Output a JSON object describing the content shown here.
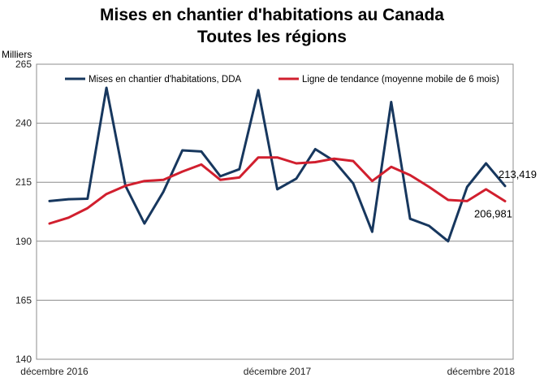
{
  "chart_data": {
    "type": "line",
    "title": "Mises en chantier d'habitations  au Canada",
    "subtitle": "Toutes les régions",
    "ylabel": "Milliers",
    "ylim": [
      140,
      265
    ],
    "yticks": [
      140,
      165,
      190,
      215,
      240,
      265
    ],
    "x_tick_labels": [
      {
        "index": 0,
        "label": "décembre 2016"
      },
      {
        "index": 12,
        "label": "décembre 2017"
      },
      {
        "index": 24,
        "label": "décembre 2018"
      }
    ],
    "grid": true,
    "legend_position": "top",
    "series": [
      {
        "name": "Mises en chantier d'habitations, DDA",
        "color": "#17375e",
        "values": [
          207.0,
          207.8,
          208.0,
          255.0,
          213.5,
          197.5,
          211.0,
          228.5,
          228.0,
          217.5,
          220.5,
          254.0,
          212.0,
          216.5,
          229.0,
          224.0,
          214.5,
          194.0,
          249.0,
          199.5,
          196.5,
          190.0,
          213.0,
          223.0,
          213.419
        ],
        "end_label": "213,419"
      },
      {
        "name": "Ligne de tendance (moyenne mobile de 6 mois)",
        "color": "#d11f2e",
        "values": [
          197.5,
          200.0,
          204.0,
          210.0,
          213.5,
          215.5,
          216.0,
          219.5,
          222.5,
          216.0,
          217.0,
          225.5,
          225.5,
          223.0,
          223.5,
          225.0,
          224.0,
          215.5,
          221.5,
          218.0,
          213.0,
          207.5,
          207.0,
          212.0,
          206.981
        ],
        "end_label": "206,981"
      }
    ]
  }
}
